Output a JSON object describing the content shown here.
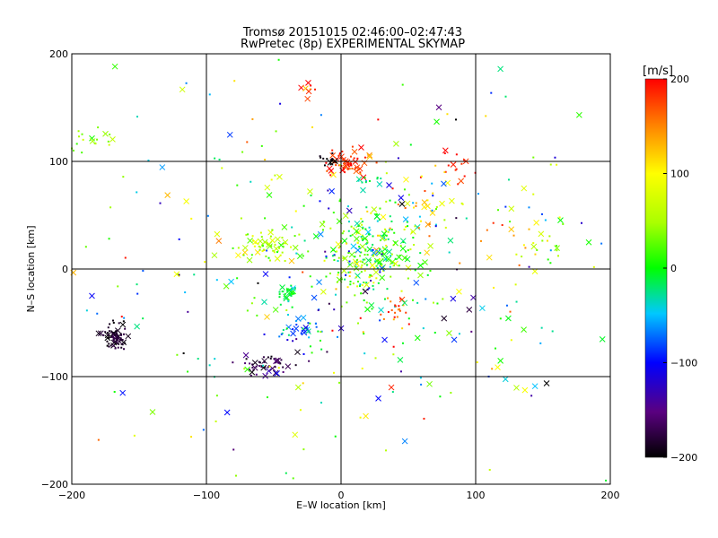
{
  "chart_data": {
    "type": "scatter",
    "title": "Tromsø 20151015 02:46:00–02:47:43",
    "subtitle": "RwPretec (8p) EXPERIMENTAL SKYMAP",
    "xlabel": "E–W location [km]",
    "ylabel": "N–S location [km]",
    "xlim": [
      -200,
      200
    ],
    "ylim": [
      -200,
      200
    ],
    "x_ticks": [
      -200,
      -100,
      0,
      100,
      200
    ],
    "y_ticks": [
      -200,
      -100,
      0,
      100,
      200
    ],
    "grid": true,
    "colorbar": {
      "label": "[m/s]",
      "range": [
        -200,
        200
      ],
      "ticks": [
        200,
        100,
        0,
        -100,
        -200
      ],
      "colormap": "rainbow"
    },
    "clusters": [
      {
        "cx": 5,
        "cy": 98,
        "sx": 10,
        "sy": 5,
        "v": 185,
        "vs": 20,
        "n": 60
      },
      {
        "cx": -7,
        "cy": 102,
        "sx": 4,
        "sy": 3,
        "v": -195,
        "vs": 10,
        "n": 14
      },
      {
        "cx": 20,
        "cy": 83,
        "sx": 6,
        "sy": 3,
        "v": -30,
        "vs": 25,
        "n": 12
      },
      {
        "cx": 20,
        "cy": 15,
        "sx": 18,
        "sy": 20,
        "v": 20,
        "vs": 50,
        "n": 260
      },
      {
        "cx": -58,
        "cy": 22,
        "sx": 12,
        "sy": 8,
        "v": 50,
        "vs": 25,
        "n": 60
      },
      {
        "cx": -40,
        "cy": -23,
        "sx": 4,
        "sy": 4,
        "v": -10,
        "vs": 10,
        "n": 25
      },
      {
        "cx": -167,
        "cy": -63,
        "sx": 5,
        "sy": 6,
        "v": -185,
        "vs": 12,
        "n": 70
      },
      {
        "cx": -55,
        "cy": -88,
        "sx": 10,
        "sy": 6,
        "v": -170,
        "vs": 15,
        "n": 45
      },
      {
        "cx": -30,
        "cy": -55,
        "sx": 10,
        "sy": 10,
        "v": -60,
        "vs": 40,
        "n": 35
      },
      {
        "cx": 40,
        "cy": -40,
        "sx": 7,
        "sy": 8,
        "v": 170,
        "vs": 30,
        "n": 20
      },
      {
        "cx": 85,
        "cy": 95,
        "sx": 6,
        "sy": 10,
        "v": 190,
        "vs": 10,
        "n": 15
      },
      {
        "cx": 145,
        "cy": 30,
        "sx": 12,
        "sy": 15,
        "v": 80,
        "vs": 60,
        "n": 30
      },
      {
        "cx": -185,
        "cy": 117,
        "sx": 10,
        "sy": 6,
        "v": 45,
        "vs": 20,
        "n": 20
      },
      {
        "cx": -25,
        "cy": 168,
        "sx": 3,
        "sy": 4,
        "v": 160,
        "vs": 40,
        "n": 8
      },
      {
        "cx": 65,
        "cy": 55,
        "sx": 15,
        "sy": 15,
        "v": 120,
        "vs": 40,
        "n": 30
      },
      {
        "cx": 0,
        "cy": 0,
        "sx": 110,
        "sy": 95,
        "v": 0,
        "vs": 90,
        "n": 380
      }
    ]
  }
}
